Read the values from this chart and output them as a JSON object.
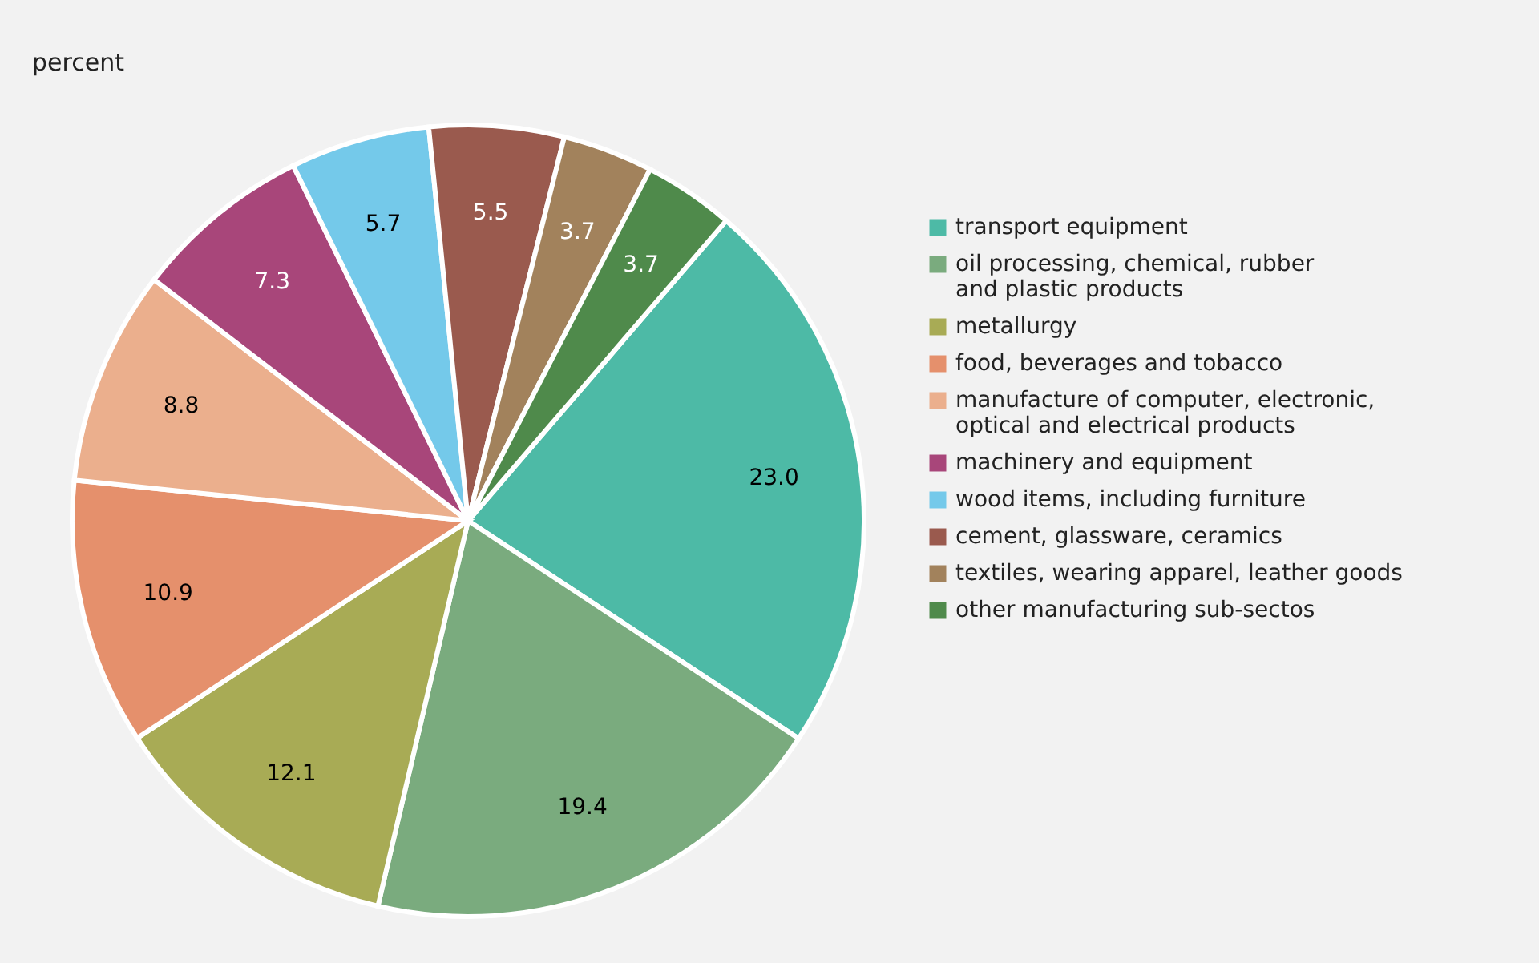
{
  "chart_data": {
    "type": "pie",
    "title": "percent",
    "categories": [
      "transport equipment",
      "oil processing, chemical, rubber\nand plastic products",
      "metallurgy",
      "food, beverages and tobacco",
      "manufacture of computer, electronic,\noptical and electrical products",
      "machinery and equipment",
      "wood items, including furniture",
      "cement, glassware, ceramics",
      "textiles, wearing apparel, leather goods",
      "other manufacturing sub-sectos"
    ],
    "values": [
      23.0,
      19.4,
      12.1,
      10.9,
      8.8,
      7.3,
      5.7,
      5.5,
      3.7,
      3.7
    ],
    "value_labels": [
      "23.0",
      "19.4",
      "12.1",
      "10.9",
      "8.8",
      "7.3",
      "5.7",
      "5.5",
      "3.7",
      "3.7"
    ],
    "colors": [
      "#4dbaa6",
      "#7aab7e",
      "#a8ab55",
      "#e5906c",
      "#ebaf8d",
      "#a8467a",
      "#74c9ea",
      "#9a5a4e",
      "#a2825c",
      "#4f8a4b"
    ],
    "legend": "right"
  }
}
